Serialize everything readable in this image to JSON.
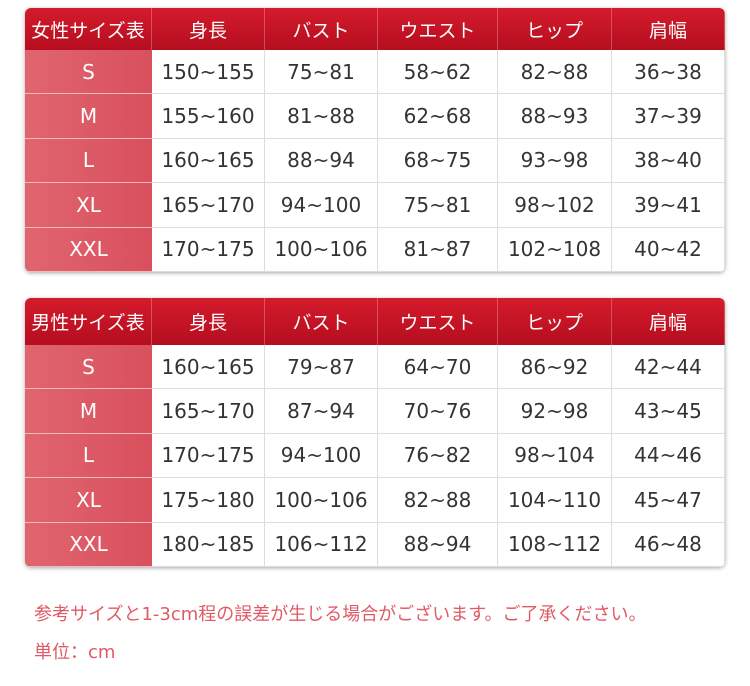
{
  "tables": [
    {
      "header": [
        "女性サイズ表",
        "身長",
        "バスト",
        "ウエスト",
        "ヒップ",
        "肩幅"
      ],
      "rows": [
        [
          "S",
          "150~155",
          "75~81",
          "58~62",
          "82~88",
          "36~38"
        ],
        [
          "M",
          "155~160",
          "81~88",
          "62~68",
          "88~93",
          "37~39"
        ],
        [
          "L",
          "160~165",
          "88~94",
          "68~75",
          "93~98",
          "38~40"
        ],
        [
          "XL",
          "165~170",
          "94~100",
          "75~81",
          "98~102",
          "39~41"
        ],
        [
          "XXL",
          "170~175",
          "100~106",
          "81~87",
          "102~108",
          "40~42"
        ]
      ]
    },
    {
      "header": [
        "男性サイズ表",
        "身長",
        "バスト",
        "ウエスト",
        "ヒップ",
        "肩幅"
      ],
      "rows": [
        [
          "S",
          "160~165",
          "79~87",
          "64~70",
          "86~92",
          "42~44"
        ],
        [
          "M",
          "165~170",
          "87~94",
          "70~76",
          "92~98",
          "43~45"
        ],
        [
          "L",
          "170~175",
          "94~100",
          "76~82",
          "98~104",
          "44~46"
        ],
        [
          "XL",
          "175~180",
          "100~106",
          "82~88",
          "104~110",
          "45~47"
        ],
        [
          "XXL",
          "180~185",
          "106~112",
          "88~94",
          "108~112",
          "46~48"
        ]
      ]
    }
  ],
  "notes": [
    "参考サイズと1-3cm程の誤差が生じる場合がございます。ご了承ください。",
    "単位：cm"
  ]
}
